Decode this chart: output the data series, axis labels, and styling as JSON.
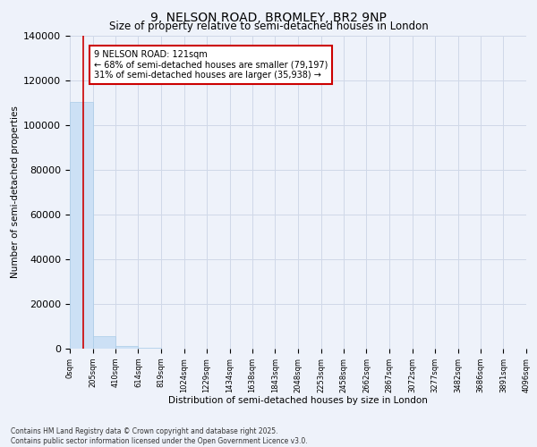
{
  "title_line1": "9, NELSON ROAD, BROMLEY, BR2 9NP",
  "title_line2": "Size of property relative to semi-detached houses in London",
  "xlabel": "Distribution of semi-detached houses by size in London",
  "ylabel": "Number of semi-detached properties",
  "annotation_line1": "9 NELSON ROAD: 121sqm",
  "annotation_line2": "← 68% of semi-detached houses are smaller (79,197)",
  "annotation_line3": "31% of semi-detached houses are larger (35,938) →",
  "footer_line1": "Contains HM Land Registry data © Crown copyright and database right 2025.",
  "footer_line2": "Contains public sector information licensed under the Open Government Licence v3.0.",
  "bar_color": "#cce0f5",
  "bar_edge_color": "#aacce8",
  "red_line_color": "#cc0000",
  "annotation_box_color": "#cc0000",
  "background_color": "#eef2fa",
  "grid_color": "#d0d8e8",
  "bar_heights": [
    110500,
    5500,
    1200,
    400,
    200,
    100,
    70,
    50,
    35,
    25,
    20,
    15,
    12,
    10,
    8,
    6,
    5,
    4,
    3,
    2
  ],
  "bin_edges": [
    0,
    205,
    410,
    614,
    819,
    1024,
    1229,
    1434,
    1638,
    1843,
    2048,
    2253,
    2458,
    2662,
    2867,
    3072,
    3277,
    3482,
    3686,
    3891,
    4096
  ],
  "xtick_labels": [
    "0sqm",
    "205sqm",
    "410sqm",
    "614sqm",
    "819sqm",
    "1024sqm",
    "1229sqm",
    "1434sqm",
    "1638sqm",
    "1843sqm",
    "2048sqm",
    "2253sqm",
    "2458sqm",
    "2662sqm",
    "2867sqm",
    "3072sqm",
    "3277sqm",
    "3482sqm",
    "3686sqm",
    "3891sqm",
    "4096sqm"
  ],
  "property_size": 121,
  "ylim": [
    0,
    140000
  ],
  "yticks": [
    0,
    20000,
    40000,
    60000,
    80000,
    100000,
    120000,
    140000
  ]
}
